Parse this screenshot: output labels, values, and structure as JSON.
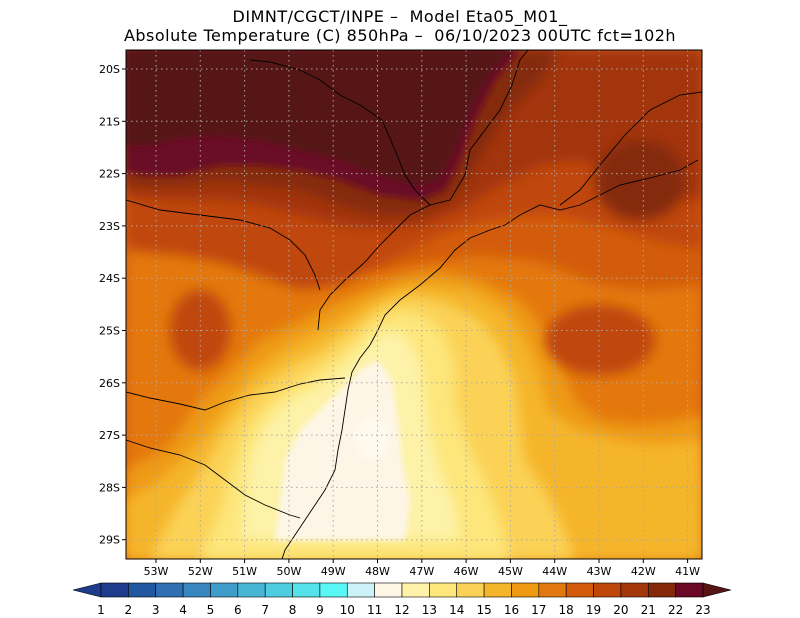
{
  "title": {
    "line1": "DIMNT/CGCT/INPE –  Model Eta05_M01_",
    "line2": "Absolute Temperature (C) 850hPa –  06/10/2023 00UTC fct=102h"
  },
  "map": {
    "lat_labels": [
      "20S",
      "21S",
      "22S",
      "23S",
      "24S",
      "25S",
      "26S",
      "27S",
      "28S",
      "29S"
    ],
    "lon_labels": [
      "53W",
      "52W",
      "51W",
      "50W",
      "49W",
      "48W",
      "47W",
      "46W",
      "45W",
      "44W",
      "43W",
      "42W",
      "41W"
    ],
    "grid": "dotted"
  },
  "colorbar": {
    "labels": [
      "1",
      "2",
      "3",
      "4",
      "5",
      "6",
      "7",
      "8",
      "9",
      "10",
      "11",
      "12",
      "13",
      "14",
      "15",
      "16",
      "17",
      "18",
      "19",
      "20",
      "21",
      "22",
      "23"
    ],
    "colors": [
      "#1f3c8c",
      "#2156a0",
      "#2d6fb0",
      "#3886bd",
      "#3f9ec9",
      "#47b6d4",
      "#4ecde0",
      "#55e2ea",
      "#5af7f7",
      "#cbf2f7",
      "#fdf6e6",
      "#fdf2a8",
      "#fde67a",
      "#fbd256",
      "#f5b52a",
      "#ee9a12",
      "#e47810",
      "#d35c0c",
      "#c0470b",
      "#a3360b",
      "#842909",
      "#6a0a26",
      "#561414"
    ]
  }
}
